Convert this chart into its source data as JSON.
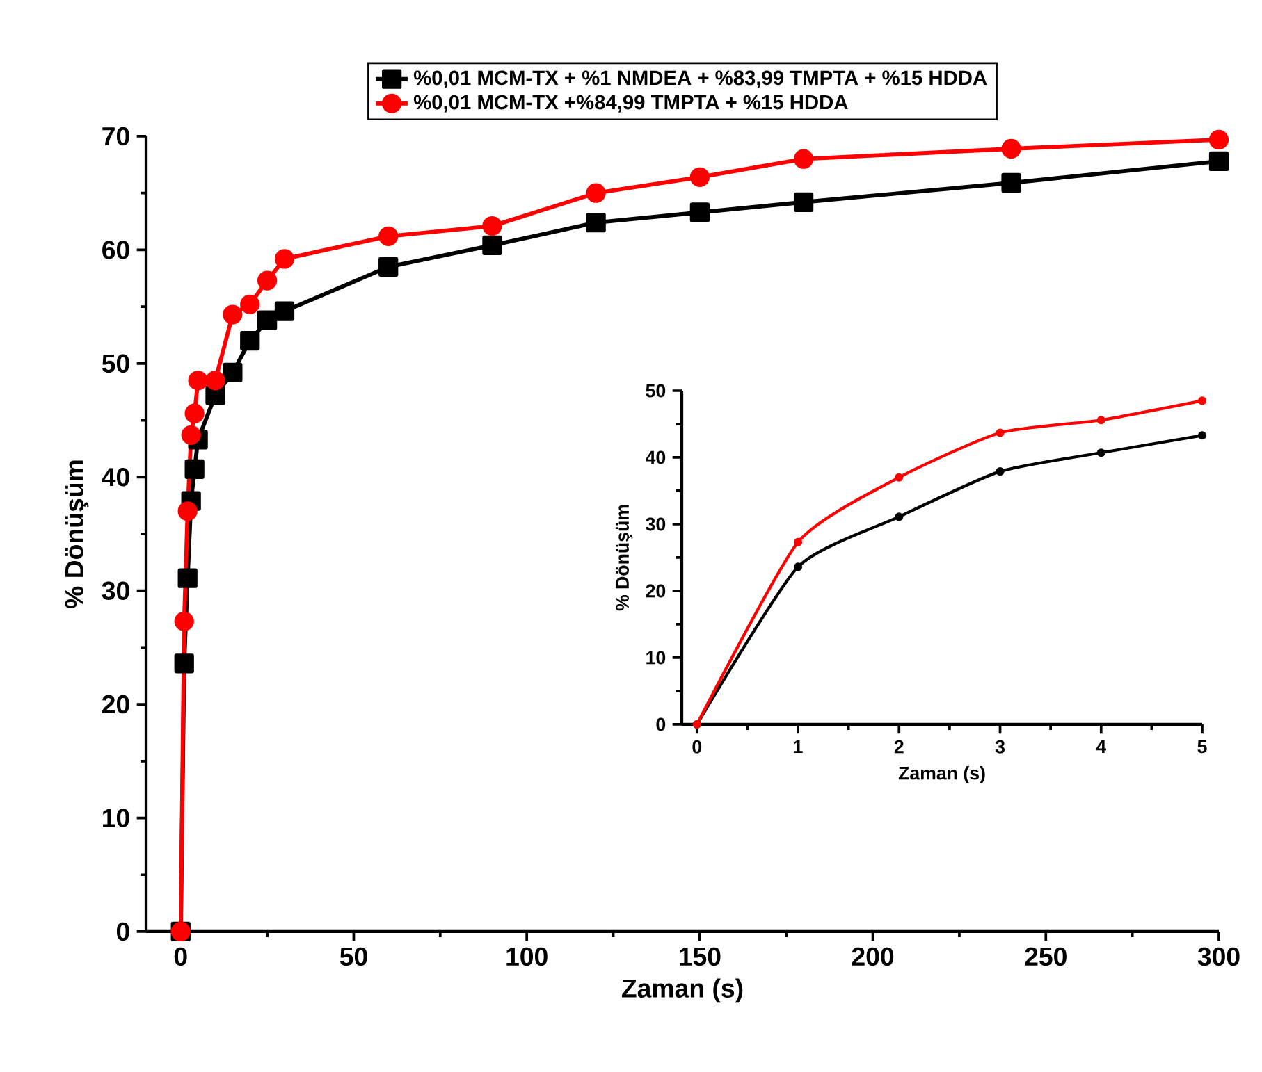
{
  "chart_data": [
    {
      "type": "line",
      "xlabel": "Zaman (s)",
      "ylabel": "% Dönüşüm",
      "xlim": [
        -10,
        300
      ],
      "ylim": [
        0,
        70
      ],
      "xticks": [
        0,
        50,
        100,
        150,
        200,
        250,
        300
      ],
      "yticks": [
        0,
        10,
        20,
        30,
        40,
        50,
        60,
        70
      ],
      "legend": "top",
      "grid": false,
      "line_style": "solid",
      "series": [
        {
          "name": "%0,01 MCM-TX + %1 NMDEA + %83,99 TMPTA + %15 HDDA",
          "color": "#000000",
          "marker": "square",
          "x": [
            0,
            1,
            2,
            3,
            4,
            5,
            10,
            15,
            20,
            25,
            30,
            60,
            90,
            120,
            150,
            180,
            240,
            300
          ],
          "values": [
            0,
            23.6,
            31.1,
            37.9,
            40.7,
            43.3,
            47.2,
            49.2,
            52,
            53.8,
            54.6,
            58.5,
            60.4,
            62.4,
            63.3,
            64.2,
            65.9,
            67.8
          ]
        },
        {
          "name": "%0,01 MCM-TX +%84,99 TMPTA + %15 HDDA",
          "color": "#ff0000",
          "marker": "circle",
          "x": [
            0,
            1,
            2,
            3,
            4,
            5,
            10,
            15,
            20,
            25,
            30,
            60,
            90,
            120,
            150,
            180,
            240,
            300
          ],
          "values": [
            0,
            27.3,
            37,
            43.7,
            45.6,
            48.5,
            48.5,
            54.3,
            55.2,
            57.3,
            59.2,
            61.2,
            62.1,
            65,
            66.4,
            68,
            68.9,
            69.7
          ]
        }
      ]
    },
    {
      "type": "line",
      "xlabel": "Zaman (s)",
      "ylabel": "% Dönüşüm",
      "xlim": [
        -0.15,
        5
      ],
      "ylim": [
        0,
        50
      ],
      "xticks": [
        0,
        1,
        2,
        3,
        4,
        5
      ],
      "yticks": [
        0,
        10,
        20,
        30,
        40,
        50
      ],
      "legend": false,
      "grid": false,
      "line_style": "solid",
      "series": [
        {
          "color": "#000000",
          "marker": "circle",
          "x": [
            0,
            1,
            2,
            3,
            4,
            5
          ],
          "values": [
            0,
            23.6,
            31.1,
            37.9,
            40.7,
            43.3
          ]
        },
        {
          "color": "#ff0000",
          "marker": "circle",
          "x": [
            0,
            1,
            2,
            3,
            4,
            5
          ],
          "values": [
            0,
            27.3,
            37,
            43.7,
            45.6,
            48.5
          ]
        }
      ]
    }
  ]
}
